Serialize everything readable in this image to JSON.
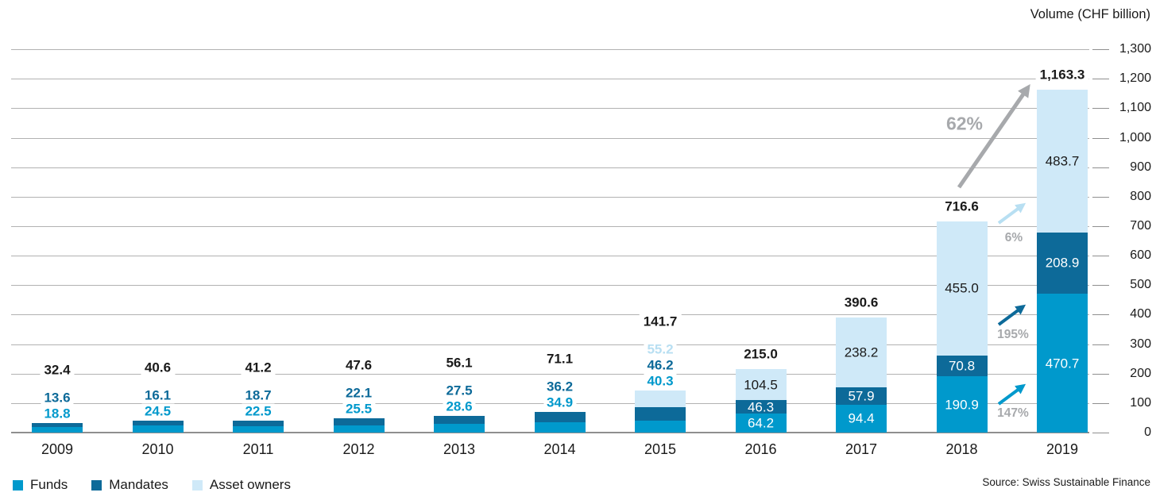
{
  "header": {
    "ylabel": "Volume (CHF billion)"
  },
  "source": "Source: Swiss Sustainable Finance",
  "legend": [
    {
      "label": "Funds",
      "color": "#0099cc"
    },
    {
      "label": "Mandates",
      "color": "#0d6a99"
    },
    {
      "label": "Asset owners",
      "color": "#cfe9f8"
    }
  ],
  "chart_data": {
    "type": "bar",
    "stacked": true,
    "title": "",
    "ylabel": "Volume (CHF billion)",
    "ylim": [
      0,
      1300
    ],
    "ytick_step": 100,
    "ytick_labels": [
      "0",
      "100",
      "200",
      "300",
      "400",
      "500",
      "600",
      "700",
      "800",
      "900",
      "1,000",
      "1,100",
      "1,200",
      "1,300"
    ],
    "grid": true,
    "legend_position": "bottom-left",
    "categories": [
      "2009",
      "2010",
      "2011",
      "2012",
      "2013",
      "2014",
      "2015",
      "2016",
      "2017",
      "2018",
      "2019"
    ],
    "series": [
      {
        "name": "Funds",
        "color": "#0099cc",
        "label_color": "#0099cc",
        "values": [
          18.8,
          24.5,
          22.5,
          25.5,
          28.6,
          34.9,
          40.3,
          64.2,
          94.4,
          190.9,
          470.7
        ]
      },
      {
        "name": "Mandates",
        "color": "#0d6a99",
        "label_color": "#0d6a99",
        "values": [
          13.6,
          16.1,
          18.7,
          22.1,
          27.5,
          36.2,
          46.2,
          46.3,
          57.9,
          70.8,
          208.9
        ]
      },
      {
        "name": "Asset owners",
        "color": "#cfe9f8",
        "label_color": "#b8dff2",
        "values": [
          null,
          null,
          null,
          null,
          null,
          null,
          55.2,
          104.5,
          238.2,
          455.0,
          483.7
        ]
      }
    ],
    "totals": [
      "32.4",
      "40.6",
      "41.2",
      "47.6",
      "56.1",
      "71.1",
      "141.7",
      "215.0",
      "390.6",
      "716.6",
      "1,163.3"
    ],
    "label_mode": [
      "outside",
      "outside",
      "outside",
      "outside",
      "outside",
      "outside",
      "outside",
      "inside",
      "inside",
      "inside",
      "inside"
    ],
    "inside_label_text_colors": {
      "Funds": "#ffffff",
      "Mandates": "#ffffff",
      "Asset owners": "#1a1a1a"
    },
    "annotations": [
      {
        "label": "62%",
        "color": "#a7a9ac",
        "size": "large",
        "meaning": "total growth 2018 to 2019"
      },
      {
        "label": "6%",
        "color": "#b8dff2",
        "size": "small",
        "meaning": "asset owners growth"
      },
      {
        "label": "195%",
        "color": "#0d6a99",
        "size": "small",
        "meaning": "mandates growth"
      },
      {
        "label": "147%",
        "color": "#0099cc",
        "size": "small",
        "meaning": "funds growth"
      }
    ]
  }
}
